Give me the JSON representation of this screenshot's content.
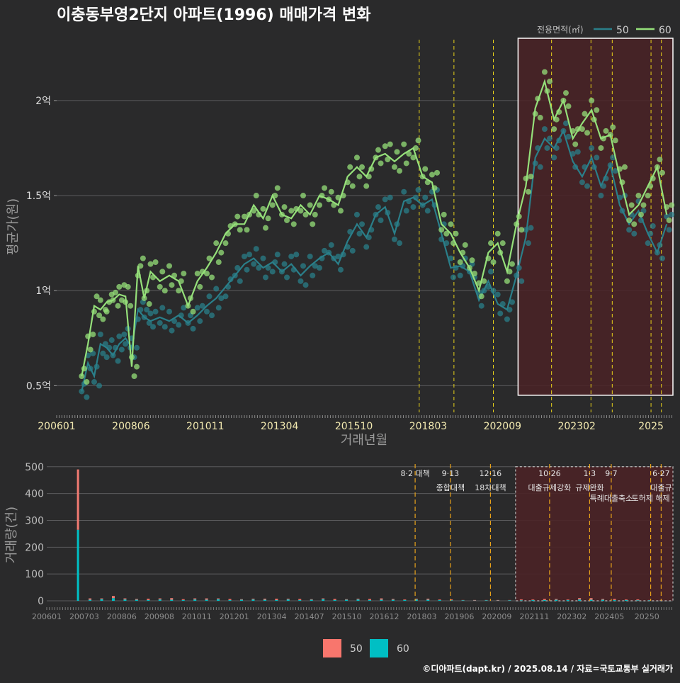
{
  "title": "이충동부영2단지 아파트(1996) 매매가격 변화",
  "footer": "©디아파트(dapt.kr) / 2025.08.14 / 자료=국토교통부 실거래가",
  "colors": {
    "background": "#2a2a2b",
    "series_50_line": "#2a7f8a",
    "series_60_line": "#95e07a",
    "bar_50": "#f07a71",
    "bar_60": "#00bfc4",
    "policy_line_top": "#e8d21a",
    "policy_line_bottom": "#e8a21a",
    "highlight_fill": "#4a2226",
    "highlight_border": "#ffffff"
  },
  "top_legend": {
    "title": "전용면적(㎡)",
    "items": [
      {
        "label": "50",
        "color": "#2a7f8a"
      },
      {
        "label": "60",
        "color": "#95e07a"
      }
    ]
  },
  "bottom_legend": {
    "items": [
      {
        "label": "50",
        "color": "#f8766d"
      },
      {
        "label": "60",
        "color": "#00bfc4"
      }
    ]
  },
  "chart_data": [
    {
      "type": "line",
      "ylabel": "평균가(원)",
      "xlabel": "거래년월",
      "x_ticks": [
        "200601",
        "200806",
        "201011",
        "201304",
        "201510",
        "201803",
        "202009",
        "202302",
        "2025"
      ],
      "y_ticks": [
        "0.5억",
        "1억",
        "1.5억",
        "2억"
      ],
      "y_tick_values": [
        0.5,
        1.0,
        1.5,
        2.0
      ],
      "ylim": [
        0.36,
        2.32
      ],
      "xlim": [
        2006.0,
        2025.7
      ],
      "policy_lines": [
        2017.59,
        2018.7,
        2019.96,
        2021.82,
        2023.08,
        2023.76,
        2025.0,
        2025.33
      ],
      "highlight": {
        "x_from": 2020.75,
        "x_to": 2025.7,
        "y_from": 0.45,
        "y_to": 2.33
      },
      "series": [
        {
          "name": "50",
          "x": [
            2006.8,
            2007.0,
            2007.2,
            2007.4,
            2007.6,
            2007.8,
            2008.0,
            2008.2,
            2008.4,
            2008.6,
            2008.8,
            2009.0,
            2009.3,
            2009.6,
            2009.9,
            2010.2,
            2010.5,
            2010.8,
            2011.1,
            2011.4,
            2011.7,
            2012.0,
            2012.3,
            2012.6,
            2012.9,
            2013.2,
            2013.5,
            2013.8,
            2014.1,
            2014.4,
            2014.7,
            2015.0,
            2015.3,
            2015.6,
            2015.9,
            2016.2,
            2016.5,
            2016.8,
            2017.1,
            2017.4,
            2017.7,
            2018.0,
            2018.3,
            2018.6,
            2018.9,
            2019.2,
            2019.5,
            2019.8,
            2020.1,
            2020.4,
            2020.7,
            2021.0,
            2021.3,
            2021.6,
            2021.9,
            2022.2,
            2022.5,
            2022.8,
            2023.1,
            2023.4,
            2023.7,
            2024.0,
            2024.3,
            2024.6,
            2024.9,
            2025.2,
            2025.5
          ],
          "values": [
            0.47,
            0.62,
            0.55,
            0.72,
            0.7,
            0.66,
            0.72,
            0.75,
            0.7,
            0.9,
            0.86,
            0.84,
            0.86,
            0.84,
            0.87,
            0.83,
            0.87,
            0.92,
            0.96,
            1.02,
            1.08,
            1.14,
            1.17,
            1.12,
            1.15,
            1.1,
            1.14,
            1.08,
            1.13,
            1.17,
            1.2,
            1.14,
            1.26,
            1.35,
            1.28,
            1.4,
            1.44,
            1.3,
            1.47,
            1.49,
            1.45,
            1.48,
            1.3,
            1.12,
            1.13,
            1.1,
            0.95,
            1.05,
            0.93,
            0.9,
            1.08,
            1.28,
            1.7,
            1.8,
            1.75,
            1.84,
            1.68,
            1.6,
            1.7,
            1.55,
            1.66,
            1.45,
            1.35,
            1.42,
            1.3,
            1.2,
            1.35
          ]
        },
        {
          "name": "60",
          "x": [
            2006.8,
            2007.0,
            2007.2,
            2007.4,
            2007.6,
            2007.8,
            2008.0,
            2008.2,
            2008.4,
            2008.6,
            2008.8,
            2009.0,
            2009.3,
            2009.6,
            2009.9,
            2010.2,
            2010.5,
            2010.8,
            2011.1,
            2011.4,
            2011.7,
            2012.0,
            2012.3,
            2012.6,
            2012.9,
            2013.2,
            2013.5,
            2013.8,
            2014.1,
            2014.4,
            2014.7,
            2015.0,
            2015.3,
            2015.6,
            2015.9,
            2016.2,
            2016.5,
            2016.8,
            2017.1,
            2017.4,
            2017.7,
            2018.0,
            2018.3,
            2018.6,
            2018.9,
            2019.2,
            2019.5,
            2019.8,
            2020.1,
            2020.4,
            2020.7,
            2021.0,
            2021.3,
            2021.6,
            2021.9,
            2022.2,
            2022.5,
            2022.8,
            2023.1,
            2023.4,
            2023.7,
            2024.0,
            2024.3,
            2024.6,
            2024.9,
            2025.2,
            2025.5
          ],
          "values": [
            0.55,
            0.72,
            0.92,
            0.9,
            0.94,
            0.95,
            0.98,
            0.97,
            0.6,
            1.13,
            0.96,
            1.1,
            1.05,
            1.08,
            1.05,
            0.92,
            1.05,
            1.12,
            1.2,
            1.3,
            1.35,
            1.35,
            1.45,
            1.38,
            1.5,
            1.4,
            1.38,
            1.45,
            1.4,
            1.5,
            1.48,
            1.45,
            1.6,
            1.65,
            1.6,
            1.7,
            1.72,
            1.68,
            1.72,
            1.75,
            1.6,
            1.57,
            1.35,
            1.3,
            1.2,
            1.12,
            1.0,
            1.2,
            1.25,
            1.1,
            1.35,
            1.55,
            1.96,
            2.1,
            1.9,
            2.0,
            1.8,
            1.88,
            1.95,
            1.8,
            1.82,
            1.6,
            1.4,
            1.45,
            1.55,
            1.65,
            1.4
          ]
        }
      ]
    },
    {
      "type": "bar",
      "ylabel": "거래량(건)",
      "x_ticks": [
        "200601",
        "200703",
        "200806",
        "200908",
        "201011",
        "201201",
        "201304",
        "201407",
        "201510",
        "201612",
        "201803",
        "201906",
        "202009",
        "202111",
        "202302",
        "202405",
        "20250"
      ],
      "y_ticks": [
        "0",
        "100",
        "200",
        "300",
        "400",
        "500"
      ],
      "y_tick_values": [
        0,
        100,
        200,
        300,
        400,
        500
      ],
      "ylim": [
        0,
        510
      ],
      "xlim": [
        2006.0,
        2025.7
      ],
      "policy_lines": [
        2017.59,
        2018.7,
        2019.96,
        2021.82,
        2023.08,
        2023.76,
        2025.0,
        2025.33
      ],
      "policy_labels": [
        {
          "x": 2017.59,
          "line1": "8·2 대책",
          "line2": ""
        },
        {
          "x": 2018.7,
          "line1": "9·13",
          "line2": "종합대책"
        },
        {
          "x": 2019.96,
          "line1": "12·16",
          "line2": "18차대책"
        },
        {
          "x": 2021.82,
          "line1": "10·26",
          "line2": "대출규제강화"
        },
        {
          "x": 2023.08,
          "line1": "1·3",
          "line2": "규제완화"
        },
        {
          "x": 2023.76,
          "line1": "9·7",
          "line2": "특례대출축소"
        },
        {
          "x": 2025.0,
          "line1": "",
          "line2": "토허제 해제"
        },
        {
          "x": 2025.33,
          "line1": "6·27",
          "line2": "대출규"
        }
      ],
      "highlight": {
        "x_from": 2020.75,
        "x_to": 2025.7,
        "y_from": 0,
        "y_to": 500
      },
      "spike": {
        "x": 2006.95,
        "series_60": 265,
        "total": 490
      },
      "series": [
        {
          "name": "50",
          "values": [
            225,
            5,
            3,
            8,
            4,
            3,
            5,
            4,
            6,
            3,
            4,
            5,
            3,
            4,
            2,
            3,
            4,
            5,
            3,
            4,
            2,
            3,
            4,
            2,
            3,
            4,
            5,
            3,
            2,
            3,
            4,
            2,
            3,
            1,
            2,
            1,
            2,
            1,
            3,
            2,
            4,
            3,
            2,
            5,
            6,
            3,
            4,
            2,
            3,
            1,
            2
          ]
        },
        {
          "name": "60",
          "values": [
            265,
            4,
            6,
            10,
            5,
            4,
            3,
            5,
            4,
            3,
            5,
            4,
            6,
            3,
            4,
            5,
            4,
            3,
            5,
            3,
            4,
            6,
            3,
            4,
            5,
            3,
            4,
            4,
            3,
            5,
            4,
            3,
            2,
            2,
            1,
            2,
            1,
            2,
            2,
            3,
            3,
            4,
            3,
            5,
            4,
            4,
            3,
            3,
            2,
            2,
            1
          ]
        }
      ]
    }
  ]
}
